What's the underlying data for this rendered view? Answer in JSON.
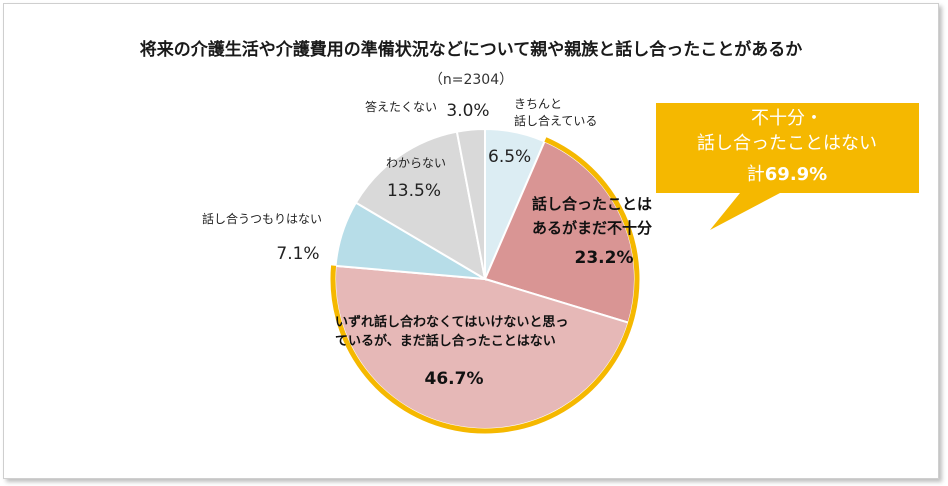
{
  "chart_data": {
    "type": "pie",
    "title": "将来の介護生活や介護費用の準備状況などについて親や親族と話し合ったことがあるか",
    "subtitle": "（n=2304）",
    "slices": [
      {
        "label": "きちんと話し合えている",
        "label_lines": [
          "きちんと",
          "話し合えている"
        ],
        "value": 6.5,
        "value_text": "6.5%",
        "color": "#dcedf3"
      },
      {
        "label": "話し合ったことはあるがまだ不十分",
        "label_lines": [
          "話し合ったことは",
          "あるがまだ不十分"
        ],
        "value": 23.2,
        "value_text": "23.2%",
        "color": "#d99594"
      },
      {
        "label": "いずれ話し合わなくてはいけないと思っているが、まだ話し合ったことはない",
        "label_lines": [
          "いずれ話し合わなくてはいけないと思っ",
          "ているが、まだ話し合ったことはない"
        ],
        "value": 46.7,
        "value_text": "46.7%",
        "color": "#e6b8b7"
      },
      {
        "label": "話し合うつもりはない",
        "label_lines": [
          "話し合うつもりはない"
        ],
        "value": 7.1,
        "value_text": "7.1%",
        "color": "#b7dde8"
      },
      {
        "label": "わからない",
        "label_lines": [
          "わからない"
        ],
        "value": 13.5,
        "value_text": "13.5%",
        "color": "#d9d9d9"
      },
      {
        "label": "答えたくない",
        "label_lines": [
          "答えたくない"
        ],
        "value": 3.0,
        "value_text": "3.0%",
        "color": "#d9d9d9"
      }
    ],
    "highlight": {
      "lines": [
        "不十分・",
        "話し合ったことはない"
      ],
      "total_prefix": "計",
      "total_value": "69.9%",
      "color": "#f5b800"
    }
  }
}
